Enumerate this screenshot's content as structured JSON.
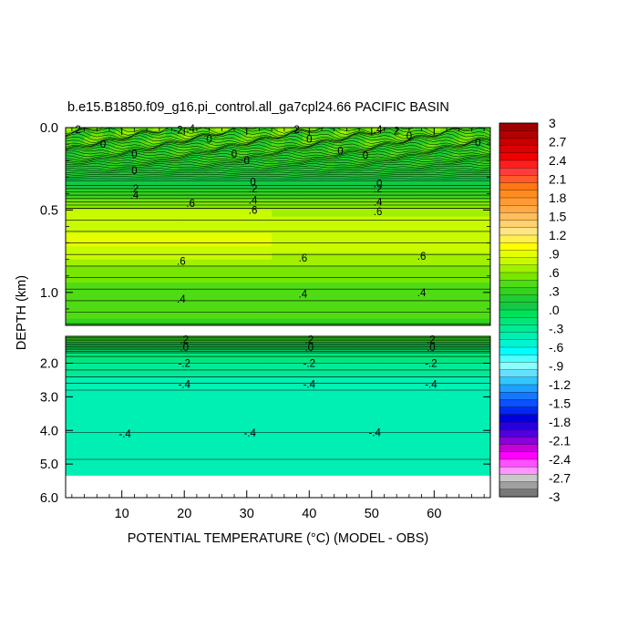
{
  "chart_data": {
    "type": "heatmap",
    "title": "b.e15.B1850.f09_g16.pi_control.all_ga7cpl24.66 PACIFIC BASIN",
    "xlabel": "POTENTIAL TEMPERATURE (°C) (MODEL - OBS)",
    "ylabel": "DEPTH (km)",
    "x_range": [
      1,
      69
    ],
    "x_ticks": [
      "10",
      "20",
      "30",
      "40",
      "50",
      "60"
    ],
    "x_tick_values": [
      10,
      20,
      30,
      40,
      50,
      60
    ],
    "upper_panel": {
      "ylim": [
        0.0,
        1.2
      ],
      "y_ticks": [
        "0.0",
        "0.5",
        "1.0"
      ],
      "y_tick_values": [
        0.0,
        0.5,
        1.0
      ]
    },
    "lower_panel": {
      "ylim": [
        1.2,
        6.0
      ],
      "y_ticks": [
        "2.0",
        "3.0",
        "4.0",
        "5.0",
        "6.0"
      ],
      "y_tick_values": [
        2.0,
        3.0,
        4.0,
        5.0,
        6.0
      ],
      "missing_below_km": 5.33
    },
    "profile": [
      {
        "depth": 0.0,
        "value": 0.45
      },
      {
        "depth": 0.15,
        "value": 0.3
      },
      {
        "depth": 0.3,
        "value": 0.15
      },
      {
        "depth": 0.34,
        "value": 0.0
      },
      {
        "depth": 0.38,
        "value": 0.2
      },
      {
        "depth": 0.42,
        "value": 0.4
      },
      {
        "depth": 0.48,
        "value": 0.6
      },
      {
        "depth": 0.55,
        "value": 0.75
      },
      {
        "depth": 0.7,
        "value": 0.8
      },
      {
        "depth": 0.8,
        "value": 0.65
      },
      {
        "depth": 0.9,
        "value": 0.5
      },
      {
        "depth": 1.1,
        "value": 0.38
      },
      {
        "depth": 1.2,
        "value": 0.35
      },
      {
        "depth": 1.45,
        "value": 0.1
      },
      {
        "depth": 1.6,
        "value": -0.15
      },
      {
        "depth": 2.0,
        "value": -0.25
      },
      {
        "depth": 2.6,
        "value": -0.4
      },
      {
        "depth": 3.5,
        "value": -0.4
      },
      {
        "depth": 4.0,
        "value": -0.42
      },
      {
        "depth": 5.3,
        "value": -0.45
      }
    ],
    "contour_labels": [
      {
        "x": 21,
        "depth": 0.46,
        "text": ".6"
      },
      {
        "x": 12,
        "depth": 0.41,
        "text": ".4"
      },
      {
        "x": 12,
        "depth": 0.37,
        "text": ".2"
      },
      {
        "x": 31,
        "depth": 0.33,
        "text": "0"
      },
      {
        "x": 31,
        "depth": 0.37,
        "text": ".2"
      },
      {
        "x": 31,
        "depth": 0.44,
        "text": ".4"
      },
      {
        "x": 31,
        "depth": 0.5,
        "text": ".6"
      },
      {
        "x": 51,
        "depth": 0.34,
        "text": ".0"
      },
      {
        "x": 51,
        "depth": 0.37,
        "text": ".2"
      },
      {
        "x": 51,
        "depth": 0.45,
        "text": ".4"
      },
      {
        "x": 51,
        "depth": 0.51,
        "text": ".6"
      },
      {
        "x": 19.5,
        "depth": 0.81,
        "text": ".6"
      },
      {
        "x": 39,
        "depth": 0.79,
        "text": ".6"
      },
      {
        "x": 58,
        "depth": 0.78,
        "text": ".6"
      },
      {
        "x": 19.5,
        "depth": 1.04,
        "text": ".4"
      },
      {
        "x": 39,
        "depth": 1.01,
        "text": ".4"
      },
      {
        "x": 58,
        "depth": 1.0,
        "text": ".4"
      },
      {
        "x": 20,
        "depth": 1.3,
        "text": ".2"
      },
      {
        "x": 20,
        "depth": 1.52,
        "text": ".0"
      },
      {
        "x": 40,
        "depth": 1.3,
        "text": ".2"
      },
      {
        "x": 40,
        "depth": 1.52,
        "text": ".0"
      },
      {
        "x": 59.5,
        "depth": 1.3,
        "text": ".2"
      },
      {
        "x": 59.5,
        "depth": 1.52,
        "text": ".0"
      },
      {
        "x": 20,
        "depth": 2.0,
        "text": "-.2"
      },
      {
        "x": 40,
        "depth": 2.0,
        "text": "-.2"
      },
      {
        "x": 59.5,
        "depth": 2.0,
        "text": "-.2"
      },
      {
        "x": 20,
        "depth": 2.63,
        "text": "-.4"
      },
      {
        "x": 40,
        "depth": 2.63,
        "text": "-.4"
      },
      {
        "x": 59.5,
        "depth": 2.63,
        "text": "-.4"
      },
      {
        "x": 10.5,
        "depth": 4.1,
        "text": "-.4"
      },
      {
        "x": 30.5,
        "depth": 4.08,
        "text": "-.4"
      },
      {
        "x": 50.5,
        "depth": 4.06,
        "text": "-.4"
      },
      {
        "x": 3,
        "depth": 0.01,
        "text": "2"
      },
      {
        "x": 19,
        "depth": 0.015,
        "text": "-2"
      },
      {
        "x": 21,
        "depth": 0.005,
        "text": ".4"
      },
      {
        "x": 38,
        "depth": 0.01,
        "text": "2"
      },
      {
        "x": 51,
        "depth": 0.01,
        "text": ".4"
      },
      {
        "x": 54,
        "depth": 0.02,
        "text": "2"
      },
      {
        "x": 7,
        "depth": 0.1,
        "text": "0"
      },
      {
        "x": 12,
        "depth": 0.16,
        "text": "0"
      },
      {
        "x": 12,
        "depth": 0.26,
        "text": "0"
      },
      {
        "x": 24,
        "depth": 0.07,
        "text": "0"
      },
      {
        "x": 28,
        "depth": 0.16,
        "text": "0"
      },
      {
        "x": 30,
        "depth": 0.2,
        "text": "0"
      },
      {
        "x": 40,
        "depth": 0.07,
        "text": "0"
      },
      {
        "x": 45,
        "depth": 0.14,
        "text": "0"
      },
      {
        "x": 49,
        "depth": 0.17,
        "text": "0"
      },
      {
        "x": 56,
        "depth": 0.05,
        "text": "0"
      },
      {
        "x": 67,
        "depth": 0.09,
        "text": "0"
      }
    ],
    "colorbar": {
      "levels": [
        "3",
        "2.7",
        "2.4",
        "2.1",
        "1.8",
        "1.5",
        "1.2",
        ".9",
        ".6",
        ".3",
        ".0",
        "-.3",
        "-.6",
        "-.9",
        "-1.2",
        "-1.5",
        "-1.8",
        "-2.1",
        "-2.4",
        "-2.7",
        "-3"
      ],
      "colors": [
        "#a00000",
        "#b40000",
        "#c80000",
        "#dc0000",
        "#f00000",
        "#ff1e1e",
        "#ff3c3c",
        "#ff5a28",
        "#ff7814",
        "#ff8c1e",
        "#ff9b32",
        "#ffaa46",
        "#ffbe5a",
        "#ffd26e",
        "#ffe682",
        "#fff050",
        "#ffff00",
        "#e6ff00",
        "#c8fa00",
        "#a0f000",
        "#78e600",
        "#50dc14",
        "#32d21e",
        "#1ecd32",
        "#14c846",
        "#00e15a",
        "#00e678",
        "#00eb96",
        "#00f0b4",
        "#00f5d2",
        "#00ffff",
        "#50ffff",
        "#8cffff",
        "#64e1ff",
        "#32c8ff",
        "#1ea0ff",
        "#1478ff",
        "#0a50ff",
        "#0028f0",
        "#0000dc",
        "#2800dc",
        "#5000dc",
        "#8c00dc",
        "#c800dc",
        "#ff00ff",
        "#ff50ff",
        "#ff96ff",
        "#c8c8c8",
        "#a0a0a0",
        "#787878"
      ]
    }
  }
}
